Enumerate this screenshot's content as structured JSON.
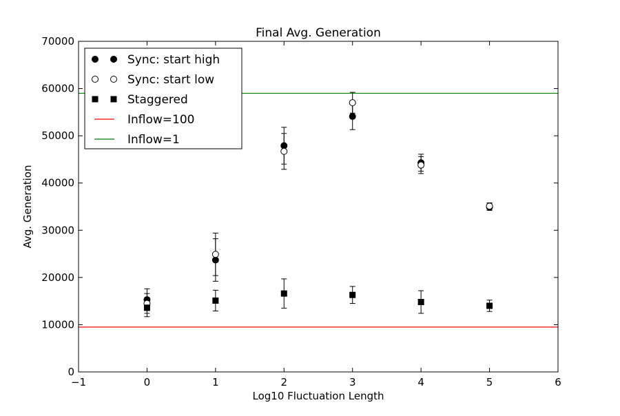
{
  "chart_data": {
    "type": "scatter",
    "title": "Final Avg. Generation",
    "xlabel": "Log10 Fluctuation Length",
    "ylabel": "Avg. Generation",
    "xlim": [
      -1,
      6
    ],
    "ylim": [
      0,
      70000
    ],
    "xticks": [
      "−1",
      "0",
      "1",
      "2",
      "3",
      "4",
      "5",
      "6"
    ],
    "yticks": [
      "0",
      "10000",
      "20000",
      "30000",
      "40000",
      "50000",
      "60000",
      "70000"
    ],
    "grid": false,
    "legend_position": "top-left",
    "series": [
      {
        "name": "Sync: start high",
        "marker": "filled-circle",
        "color": "#000000",
        "x": [
          0,
          1,
          2,
          3,
          4,
          5
        ],
        "y": [
          15300,
          23700,
          47900,
          54100,
          44300,
          34900
        ],
        "err": [
          2300,
          4500,
          3900,
          2800,
          1800,
          700
        ]
      },
      {
        "name": "Sync: start low",
        "marker": "open-circle",
        "color": "#000000",
        "x": [
          0,
          1,
          2,
          3,
          4,
          5
        ],
        "y": [
          14500,
          24900,
          46700,
          57000,
          43800,
          35100
        ],
        "err": [
          2100,
          4500,
          3800,
          2200,
          1800,
          700
        ]
      },
      {
        "name": "Staggered",
        "marker": "filled-square",
        "color": "#000000",
        "x": [
          0,
          1,
          2,
          3,
          4,
          5
        ],
        "y": [
          13600,
          15100,
          16600,
          16300,
          14800,
          14000
        ],
        "err": [
          1900,
          2200,
          3100,
          1800,
          2400,
          1200
        ]
      },
      {
        "name": "Inflow=100",
        "type": "hline",
        "color": "#ff0000",
        "y": 9500
      },
      {
        "name": "Inflow=1",
        "type": "hline",
        "color": "#008000",
        "y": 59000
      }
    ]
  }
}
